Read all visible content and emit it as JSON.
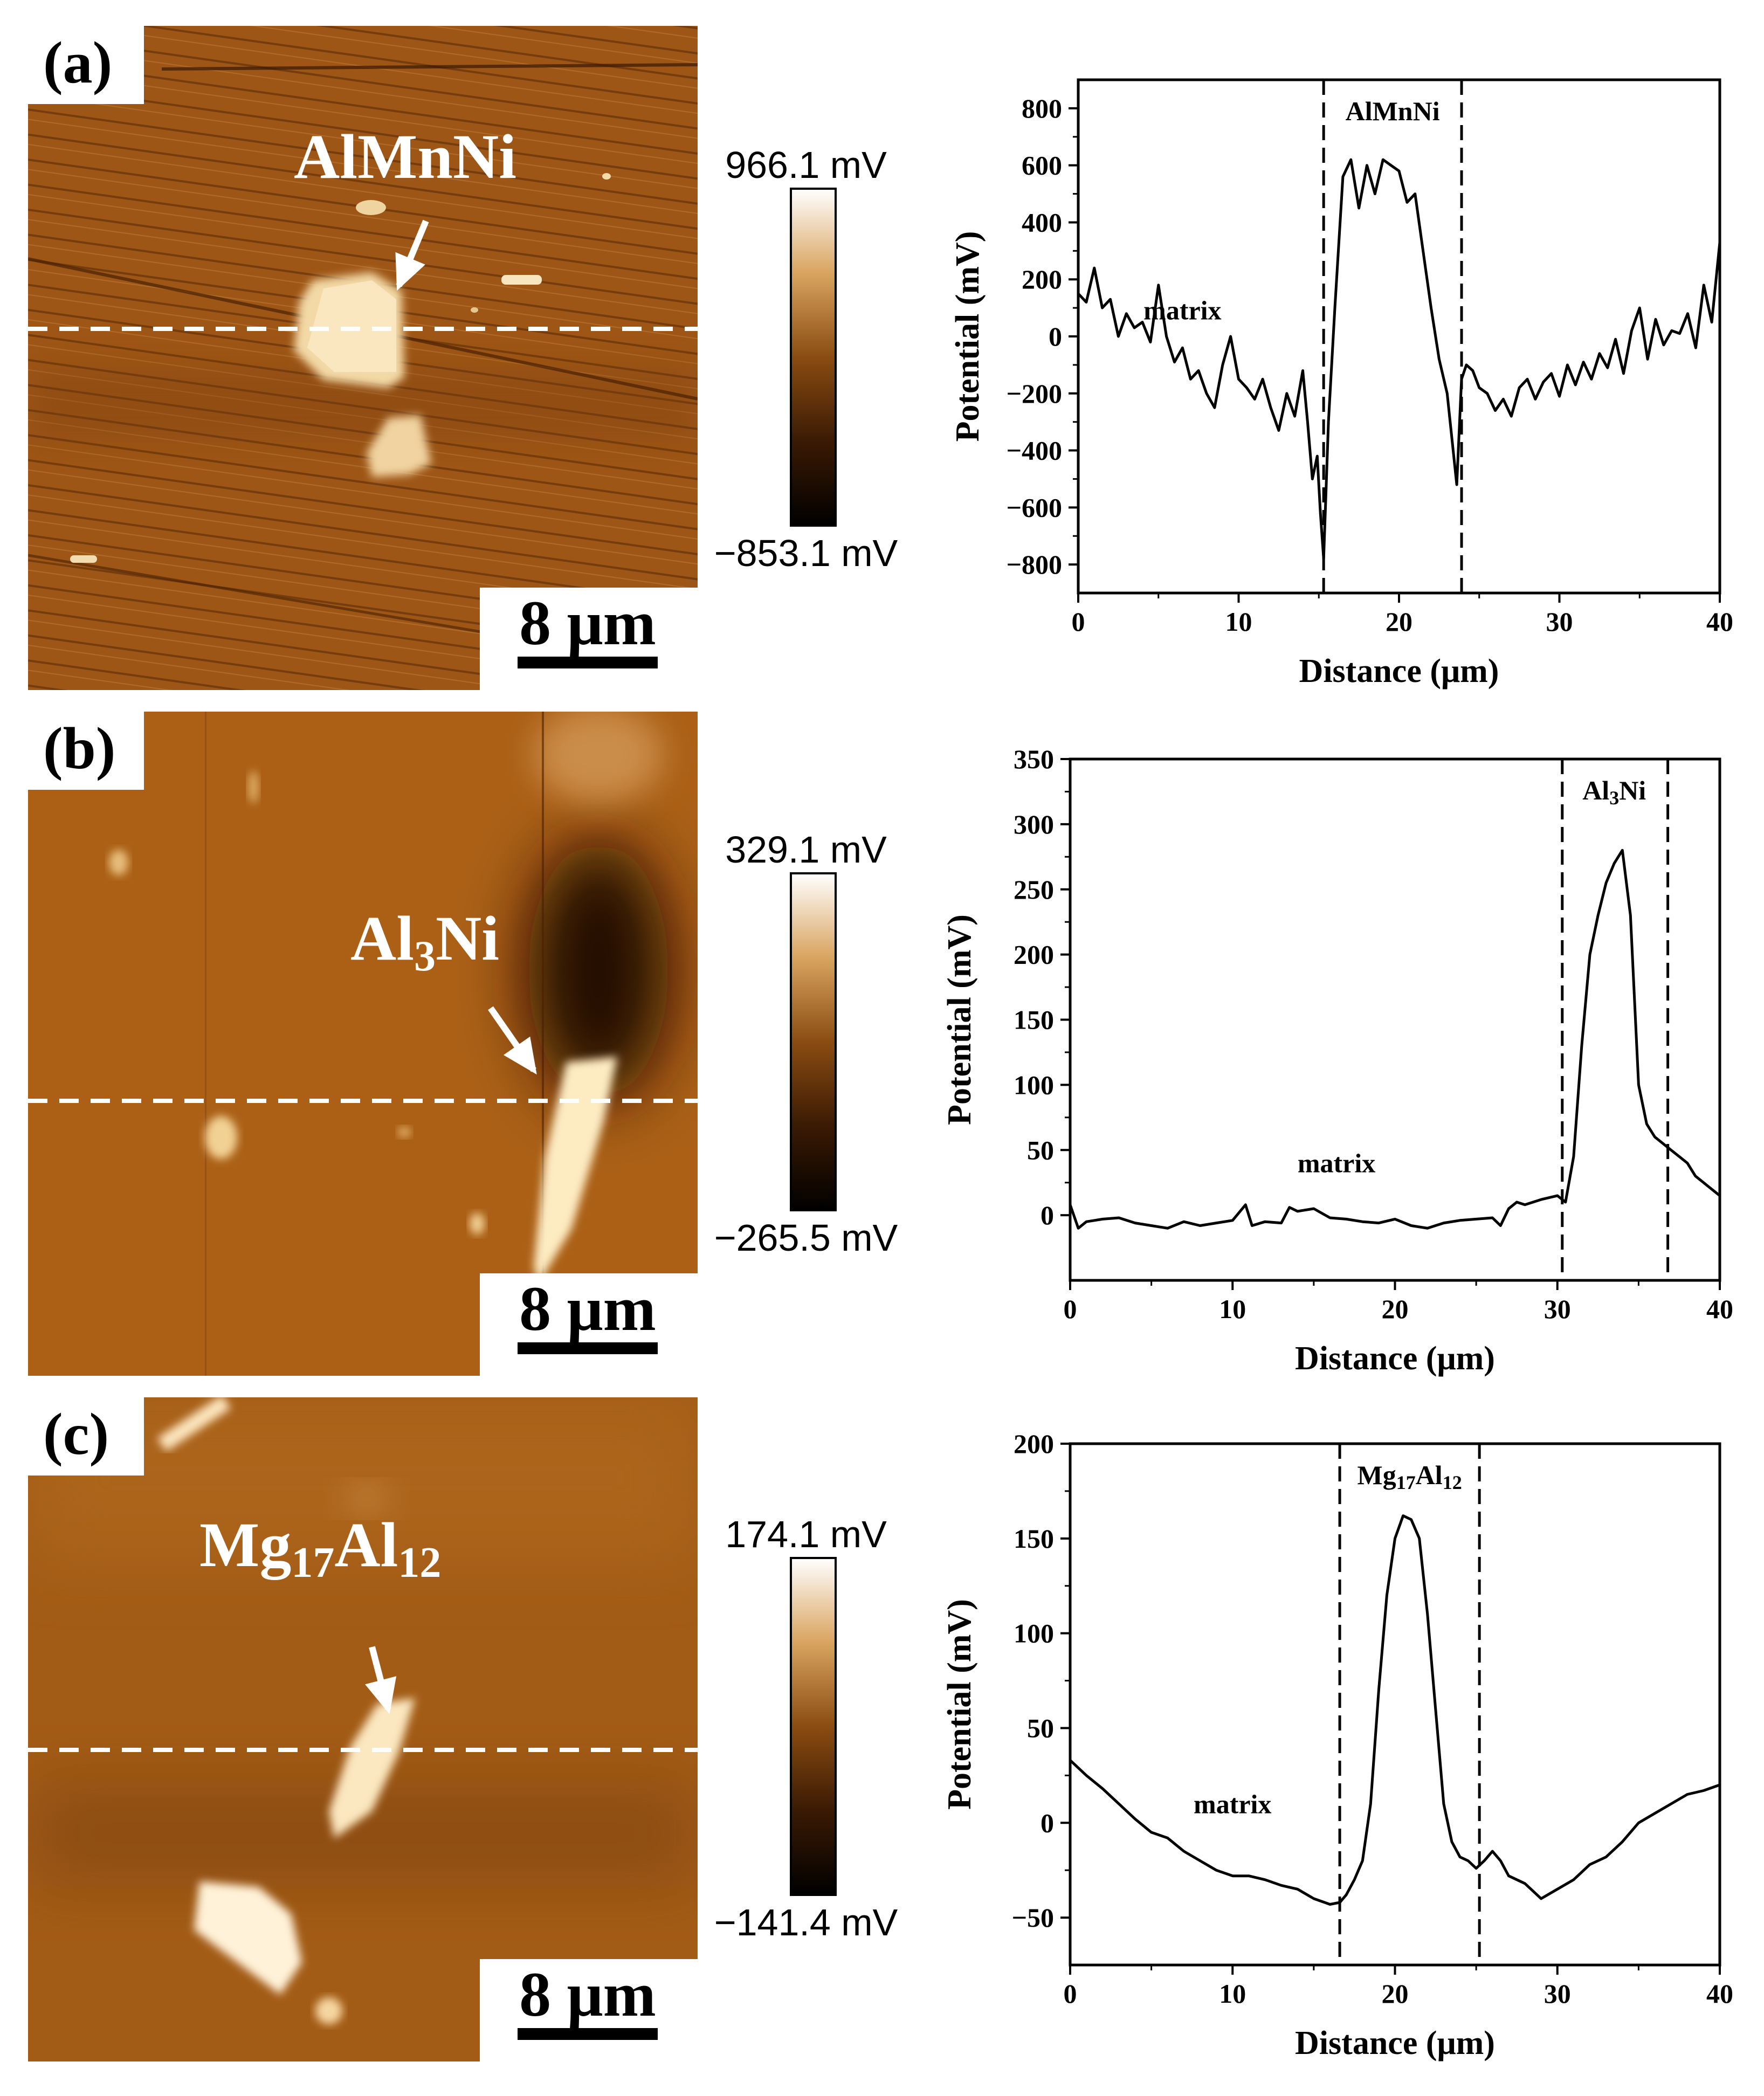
{
  "figure": {
    "panels": [
      {
        "label": "(a)",
        "phase_name": "AlMnNi",
        "phase_name_sub": "",
        "phase_name_rest": "",
        "colorbar_max": "966.1 mV",
        "colorbar_min": "−853.1 mV",
        "scale_bar": "8 μm"
      },
      {
        "label": "(b)",
        "phase_name": "Al",
        "phase_name_sub": "3",
        "phase_name_rest": "Ni",
        "colorbar_max": "329.1 mV",
        "colorbar_min": "−265.5 mV",
        "scale_bar": "8 μm"
      },
      {
        "label": "(c)",
        "phase_name": "Mg",
        "phase_name_sub": "17",
        "phase_name_rest": "Al",
        "phase_name_sub2": "12",
        "colorbar_max": "174.1 mV",
        "colorbar_min": "−141.4 mV",
        "scale_bar": "8 μm"
      }
    ],
    "colors": {
      "afm_dark": "#1a0a00",
      "afm_mid": "#a0581a",
      "afm_light": "#fff7e6",
      "line": "#000000"
    }
  },
  "chart_data": [
    {
      "type": "line",
      "xlabel": "Distance (μm)",
      "ylabel": "Potential (mV)",
      "xlim": [
        0,
        40
      ],
      "ylim": [
        -900,
        900
      ],
      "xticks": [
        0,
        10,
        20,
        30,
        40
      ],
      "yticks": [
        -800,
        -600,
        -400,
        -200,
        0,
        200,
        400,
        600,
        800
      ],
      "ytick_labels": [
        "−800",
        "−600",
        "−400",
        "−200",
        "0",
        "200",
        "400",
        "600",
        "800"
      ],
      "vlines": [
        15.3,
        23.9
      ],
      "region_label": "AlMnNi",
      "region_label_sub": "",
      "region_label_rest": "",
      "region_label_x": 19.6,
      "matrix_label": "matrix",
      "matrix_label_pos": [
        6.5,
        60
      ],
      "x": [
        0,
        0.5,
        1,
        1.5,
        2,
        2.5,
        3,
        3.5,
        4,
        4.5,
        5,
        5.5,
        6,
        6.5,
        7,
        7.5,
        8,
        8.5,
        9,
        9.5,
        10,
        10.5,
        11,
        11.5,
        12,
        12.5,
        13,
        13.5,
        14,
        14.3,
        14.6,
        14.9,
        15.1,
        15.3,
        15.6,
        16,
        16.5,
        17,
        17.5,
        18,
        18.5,
        19,
        19.5,
        20,
        20.5,
        21,
        21.5,
        22,
        22.5,
        23,
        23.3,
        23.6,
        23.9,
        24.2,
        24.6,
        25,
        25.5,
        26,
        26.5,
        27,
        27.5,
        28,
        28.5,
        29,
        29.5,
        30,
        30.5,
        31,
        31.5,
        32,
        32.5,
        33,
        33.5,
        34,
        34.5,
        35,
        35.5,
        36,
        36.5,
        37,
        37.5,
        38,
        38.5,
        39,
        39.5,
        40
      ],
      "y": [
        150,
        120,
        240,
        100,
        130,
        0,
        80,
        30,
        50,
        -20,
        180,
        0,
        -90,
        -40,
        -150,
        -120,
        -200,
        -250,
        -100,
        0,
        -150,
        -180,
        -220,
        -150,
        -250,
        -330,
        -200,
        -280,
        -120,
        -300,
        -500,
        -420,
        -620,
        -780,
        -300,
        100,
        560,
        620,
        450,
        600,
        500,
        620,
        600,
        580,
        470,
        500,
        300,
        100,
        -80,
        -200,
        -360,
        -520,
        -150,
        -100,
        -120,
        -180,
        -200,
        -260,
        -220,
        -280,
        -180,
        -150,
        -220,
        -160,
        -130,
        -210,
        -100,
        -170,
        -90,
        -150,
        -60,
        -110,
        -10,
        -130,
        20,
        100,
        -80,
        60,
        -30,
        20,
        10,
        80,
        -40,
        180,
        50,
        330
      ]
    },
    {
      "type": "line",
      "xlabel": "Distance (μm)",
      "ylabel": "Potential (mV)",
      "xlim": [
        0,
        40
      ],
      "ylim": [
        -50,
        350
      ],
      "xticks": [
        0,
        10,
        20,
        30,
        40
      ],
      "yticks": [
        0,
        50,
        100,
        150,
        200,
        250,
        300,
        350
      ],
      "ytick_labels": [
        "0",
        "50",
        "100",
        "150",
        "200",
        "250",
        "300",
        "350"
      ],
      "vlines": [
        30.3,
        36.8
      ],
      "region_label": "Al",
      "region_label_sub": "3",
      "region_label_rest": "Ni",
      "region_label_x": 33.5,
      "matrix_label": "matrix",
      "matrix_label_pos": [
        16.4,
        33
      ],
      "x": [
        0,
        0.5,
        1,
        2,
        3,
        4,
        5,
        6,
        7,
        8,
        9,
        10,
        10.8,
        11.2,
        12,
        13,
        13.5,
        14,
        15,
        16,
        17,
        18,
        19,
        20,
        21,
        22,
        23,
        24,
        25,
        26,
        26.5,
        27,
        27.5,
        28,
        29,
        30,
        30.5,
        31,
        31.5,
        32,
        32.5,
        33,
        33.5,
        34,
        34.5,
        35,
        35.5,
        36,
        36.5,
        37,
        37.5,
        38,
        38.5,
        39,
        39.5,
        40
      ],
      "y": [
        8,
        -10,
        -5,
        -3,
        -2,
        -6,
        -8,
        -10,
        -5,
        -8,
        -6,
        -4,
        8,
        -8,
        -5,
        -6,
        6,
        3,
        5,
        -2,
        -3,
        -5,
        -6,
        -3,
        -8,
        -10,
        -6,
        -4,
        -3,
        -2,
        -8,
        5,
        10,
        8,
        12,
        15,
        10,
        45,
        130,
        200,
        230,
        255,
        270,
        280,
        230,
        100,
        70,
        60,
        55,
        50,
        45,
        40,
        30,
        25,
        20,
        15
      ]
    },
    {
      "type": "line",
      "xlabel": "Distance (μm)",
      "ylabel": "Potential (mV)",
      "xlim": [
        0,
        40
      ],
      "ylim": [
        -75,
        200
      ],
      "xticks": [
        0,
        10,
        20,
        30,
        40
      ],
      "yticks": [
        -50,
        0,
        50,
        100,
        150,
        200
      ],
      "ytick_labels": [
        "−50",
        "0",
        "50",
        "100",
        "150",
        "200"
      ],
      "vlines": [
        16.6,
        25.2
      ],
      "region_label": "Mg",
      "region_label_sub": "17",
      "region_label_rest": "Al",
      "region_label_sub2": "12",
      "region_label_x": 20.9,
      "matrix_label": "matrix",
      "matrix_label_pos": [
        10,
        5
      ],
      "x": [
        0,
        1,
        2,
        3,
        4,
        5,
        6,
        7,
        8,
        9,
        10,
        11,
        12,
        13,
        14,
        15,
        16,
        16.6,
        17,
        17.5,
        18,
        18.5,
        19,
        19.5,
        20,
        20.5,
        21,
        21.5,
        22,
        22.5,
        23,
        23.5,
        24,
        24.5,
        25,
        25.5,
        26,
        26.5,
        27,
        28,
        29,
        30,
        31,
        32,
        33,
        34,
        35,
        36,
        37,
        38,
        39,
        40
      ],
      "y": [
        33,
        25,
        18,
        10,
        2,
        -5,
        -8,
        -15,
        -20,
        -25,
        -28,
        -28,
        -30,
        -33,
        -35,
        -40,
        -43,
        -42,
        -38,
        -30,
        -20,
        10,
        70,
        120,
        150,
        162,
        160,
        150,
        110,
        60,
        10,
        -10,
        -18,
        -20,
        -24,
        -20,
        -15,
        -20,
        -28,
        -32,
        -40,
        -35,
        -30,
        -22,
        -18,
        -10,
        0,
        5,
        10,
        15,
        17,
        20
      ]
    }
  ]
}
